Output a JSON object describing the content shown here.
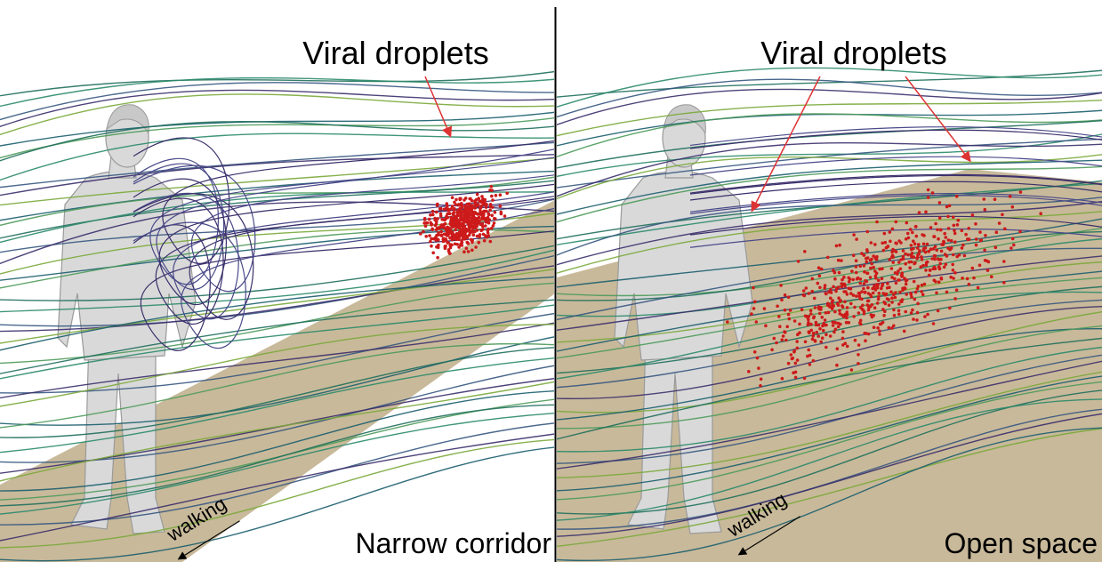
{
  "panels": [
    {
      "label": "Viral droplets",
      "direction": "walking",
      "caption": "Narrow corridor"
    },
    {
      "label": "Viral droplets",
      "direction": "walking",
      "caption": "Open space"
    }
  ]
}
